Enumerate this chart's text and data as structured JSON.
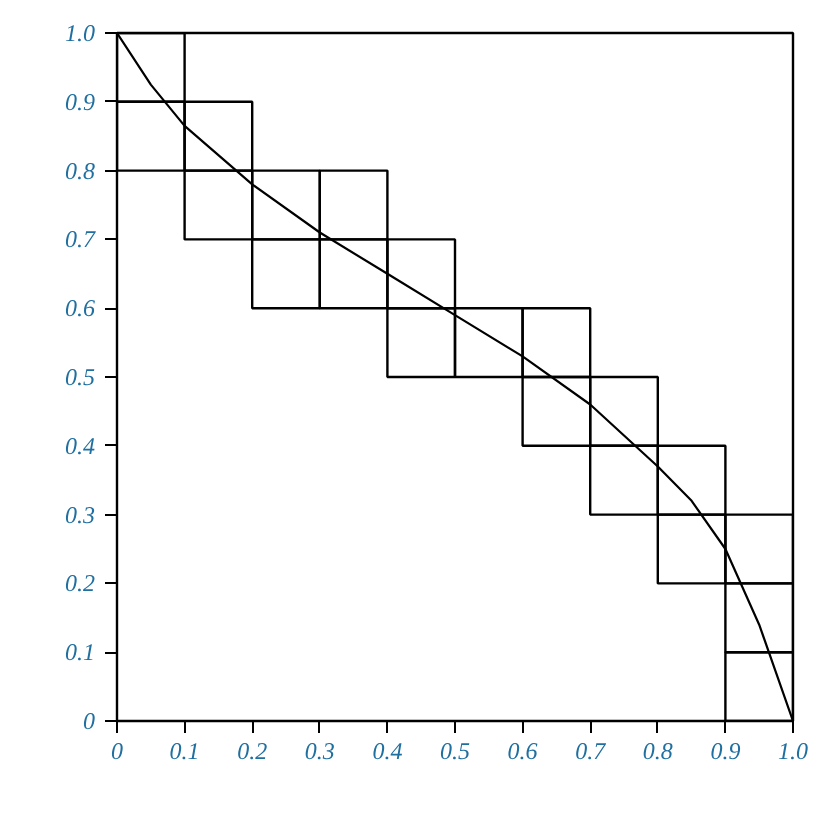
{
  "chart_data": {
    "type": "bar",
    "x": [
      0.05,
      0.15,
      0.25,
      0.35,
      0.45,
      0.55,
      0.65,
      0.75,
      0.85,
      0.95
    ],
    "series": [
      {
        "color": "#000000",
        "base": [
          0.8,
          0.7,
          0.6,
          0.6,
          0.5,
          0.5,
          0.4,
          0.3,
          0.2,
          0.0
        ],
        "values": [
          0.1,
          0.1,
          0.1,
          0.1,
          0.1,
          0.1,
          0.1,
          0.1,
          0.1,
          0.1
        ]
      },
      {
        "color": "#000000",
        "base": [
          0.9,
          0.8,
          0.7,
          0.7,
          0.6,
          null,
          0.5,
          0.4,
          0.3,
          0.1
        ],
        "values": [
          0.1,
          0.1,
          0.1,
          0.1,
          0.1,
          null,
          0.1,
          0.1,
          0.1,
          0.1
        ]
      },
      {
        "color": "#000000",
        "base": [
          null,
          null,
          null,
          null,
          null,
          null,
          null,
          null,
          null,
          0.2
        ],
        "values": [
          null,
          null,
          null,
          null,
          null,
          null,
          null,
          null,
          null,
          0.1
        ]
      },
      {
        "type": "line",
        "color": "#000000",
        "x": [
          0,
          0.05,
          0.1,
          0.2,
          0.3,
          0.4,
          0.5,
          0.6,
          0.7,
          0.8,
          0.85,
          0.9,
          0.95,
          1.0
        ],
        "values": [
          1.0,
          0.925,
          0.865,
          0.78,
          0.71,
          0.65,
          0.59,
          0.53,
          0.46,
          0.37,
          0.32,
          0.25,
          0.14,
          0.0
        ]
      }
    ],
    "xlim": [
      0,
      1
    ],
    "ylim": [
      0,
      1
    ],
    "xticks": [
      0,
      0.1,
      0.2,
      0.3,
      0.4,
      0.5,
      0.6,
      0.7,
      0.8,
      0.9,
      {
        "value": 1,
        "label": "1.0"
      }
    ],
    "yticks": [
      0,
      0.1,
      0.2,
      0.3,
      0.4,
      0.5,
      0.6,
      0.7,
      0.8,
      0.9,
      {
        "value": 1,
        "label": "1.0"
      }
    ],
    "grid": false,
    "marker": "none",
    "line_style": "solid"
  }
}
